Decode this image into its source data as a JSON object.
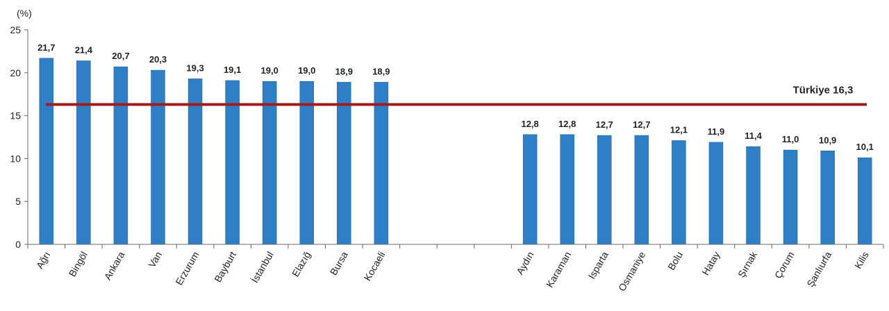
{
  "chart_data": {
    "type": "bar",
    "ylabel": "(%)",
    "ylim": [
      0,
      25
    ],
    "yticks": [
      0,
      5,
      10,
      15,
      20,
      25
    ],
    "categories": [
      "Ağrı",
      "Bingöl",
      "Ankara",
      "Van",
      "Erzurum",
      "Bayburt",
      "İstanbul",
      "Elazığ",
      "Bursa",
      "Kocaeli",
      "",
      "",
      "",
      "Aydın",
      "Karaman",
      "Isparta",
      "Osmaniye",
      "Bolu",
      "Hatay",
      "Şırnak",
      "Çorum",
      "Şanlıurfa",
      "Kilis"
    ],
    "values": [
      21.7,
      21.4,
      20.7,
      20.3,
      19.3,
      19.1,
      19.0,
      19.0,
      18.9,
      18.9,
      null,
      null,
      null,
      12.8,
      12.8,
      12.7,
      12.7,
      12.1,
      11.9,
      11.4,
      11.0,
      10.9,
      10.1
    ],
    "value_labels": [
      "21,7",
      "21,4",
      "20,7",
      "20,3",
      "19,3",
      "19,1",
      "19,0",
      "19,0",
      "18,9",
      "18,9",
      "",
      "",
      "",
      "12,8",
      "12,8",
      "12,7",
      "12,7",
      "12,1",
      "11,9",
      "11,4",
      "11,0",
      "10,9",
      "10,1"
    ],
    "reference_line": {
      "value": 16.3,
      "label": "Türkiye 16,3",
      "color": "#a01c1c"
    },
    "bar_color": "#2f7fc6",
    "grid": false,
    "legend": "none"
  }
}
